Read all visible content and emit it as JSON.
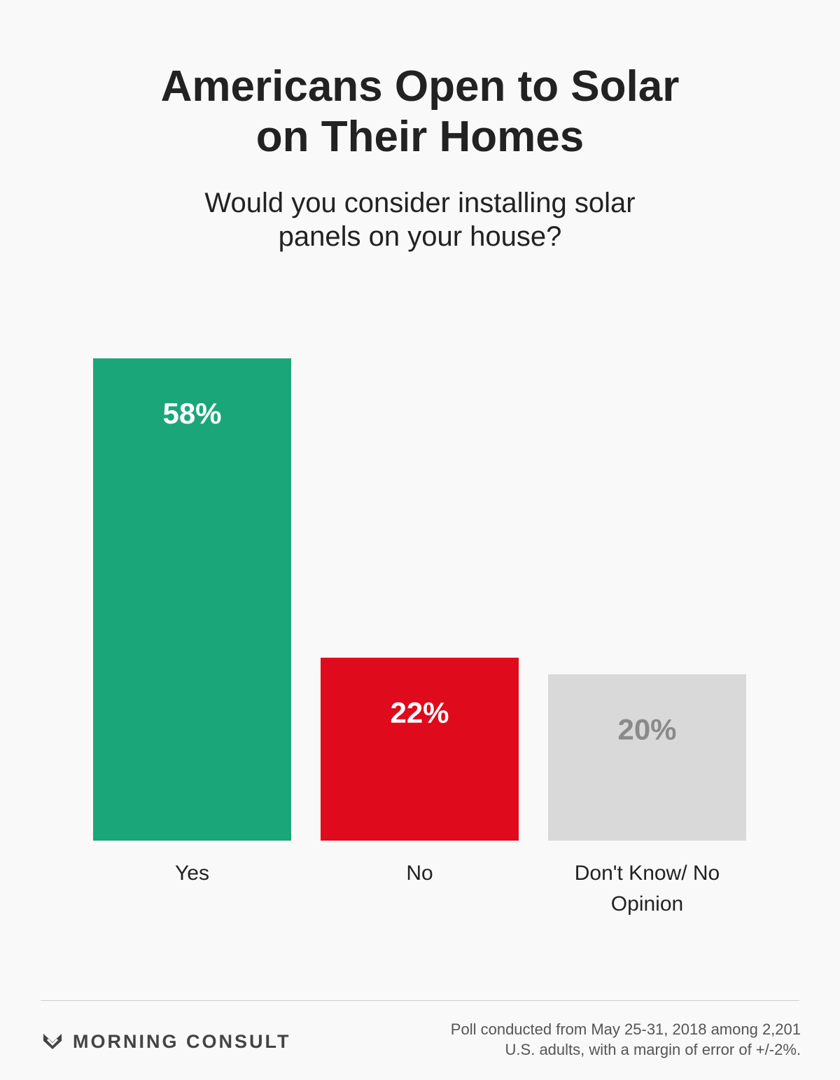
{
  "chart_data": {
    "type": "bar",
    "title": "Americans Open to Solar on Their Homes",
    "subtitle": "Would you consider installing solar panels on your house?",
    "categories": [
      "Yes",
      "No",
      "Don't Know/ No Opinion"
    ],
    "values": [
      58,
      22,
      20
    ],
    "value_labels": [
      "58%",
      "22%",
      "20%"
    ],
    "colors": [
      "#1ba67a",
      "#df0a1b",
      "#d9d9d9"
    ],
    "label_colors": [
      "#ffffff",
      "#ffffff",
      "#8a8a8a"
    ],
    "ylim": [
      0,
      58
    ],
    "source": "MORNING CONSULT",
    "notes": [
      "Poll conducted from May 25-31, 2018 among 2,201",
      "U.S. adults, with a margin of error of +/-2%."
    ]
  }
}
